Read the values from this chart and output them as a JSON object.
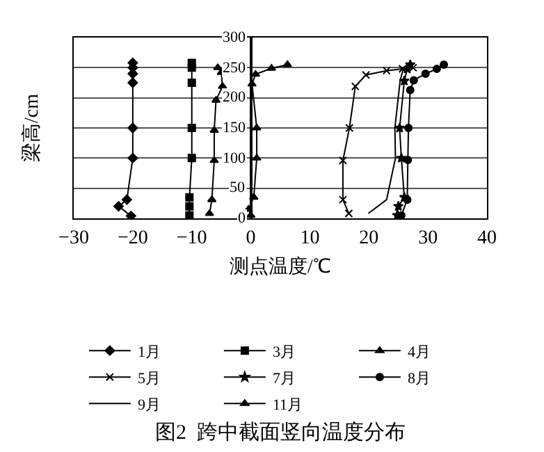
{
  "chart_data": {
    "type": "line",
    "title": "图2  跨中截面竖向温度分布",
    "xlabel": "测点温度/℃",
    "ylabel": "梁高/cm",
    "xlim": [
      -30,
      40
    ],
    "xticks": [
      -30,
      -20,
      -10,
      0,
      10,
      20,
      30,
      40
    ],
    "ylim": [
      0,
      300
    ],
    "yticks": [
      0,
      50,
      100,
      150,
      200,
      250,
      300
    ],
    "grid": "y",
    "legend": "bottom",
    "line_style": "solid",
    "series": [
      {
        "name": "1月",
        "color": "#000000",
        "marker": "diamond",
        "x": [
          -20.3,
          -22.4,
          -21,
          -20,
          -20,
          -20,
          -20,
          -20,
          -20
        ],
        "values": [
          4,
          20,
          31,
          100,
          150,
          225,
          240,
          250,
          258
        ]
      },
      {
        "name": "3月",
        "color": "#000000",
        "marker": "square",
        "x": [
          -10.4,
          -10.4,
          -10.4,
          -10,
          -10,
          -10,
          -10,
          -10
        ],
        "values": [
          5,
          20,
          35,
          100,
          150,
          225,
          250,
          258
        ]
      },
      {
        "name": "4月",
        "color": "#000000",
        "marker": "triangle",
        "x": [
          0,
          -0.4,
          0.5,
          1,
          1,
          0.2,
          0.8,
          3.5,
          6.2
        ],
        "values": [
          5,
          15,
          35,
          100,
          150,
          223,
          239,
          249,
          255
        ]
      },
      {
        "name": "5月",
        "color": "#000000",
        "marker": "cross",
        "x": [
          16.6,
          15.6,
          15.6,
          16.7,
          17.7,
          19.5,
          23,
          25.7,
          27.5
        ],
        "values": [
          8,
          31,
          96,
          150,
          219,
          238,
          245,
          248,
          250
        ]
      },
      {
        "name": "7月",
        "color": "#000000",
        "marker": "star",
        "x": [
          24.8,
          25,
          26,
          25.5,
          25.2,
          26,
          26.5,
          27
        ],
        "values": [
          5,
          20,
          35,
          100,
          150,
          228,
          248,
          255
        ]
      },
      {
        "name": "8月",
        "color": "#000000",
        "marker": "circle",
        "x": [
          25.5,
          26.5,
          26.6,
          26.7,
          27,
          27.6,
          29.6,
          31.5,
          32.7
        ],
        "values": [
          5,
          31,
          97,
          150,
          213,
          229,
          240,
          248,
          255
        ]
      },
      {
        "name": "9月",
        "color": "#000000",
        "marker": "none",
        "x": [
          19.9,
          23,
          24.5,
          24.4,
          25.3,
          25.9
        ],
        "values": [
          8,
          31,
          100,
          150,
          229,
          250
        ]
      },
      {
        "name": "11月",
        "color": "#000000",
        "marker": "triangle",
        "x": [
          -7,
          -6.6,
          -6.2,
          -6.2,
          -5.9,
          -4.8,
          -5,
          -5.6
        ],
        "values": [
          8,
          31,
          96,
          146,
          196,
          219,
          242,
          250
        ]
      }
    ]
  }
}
